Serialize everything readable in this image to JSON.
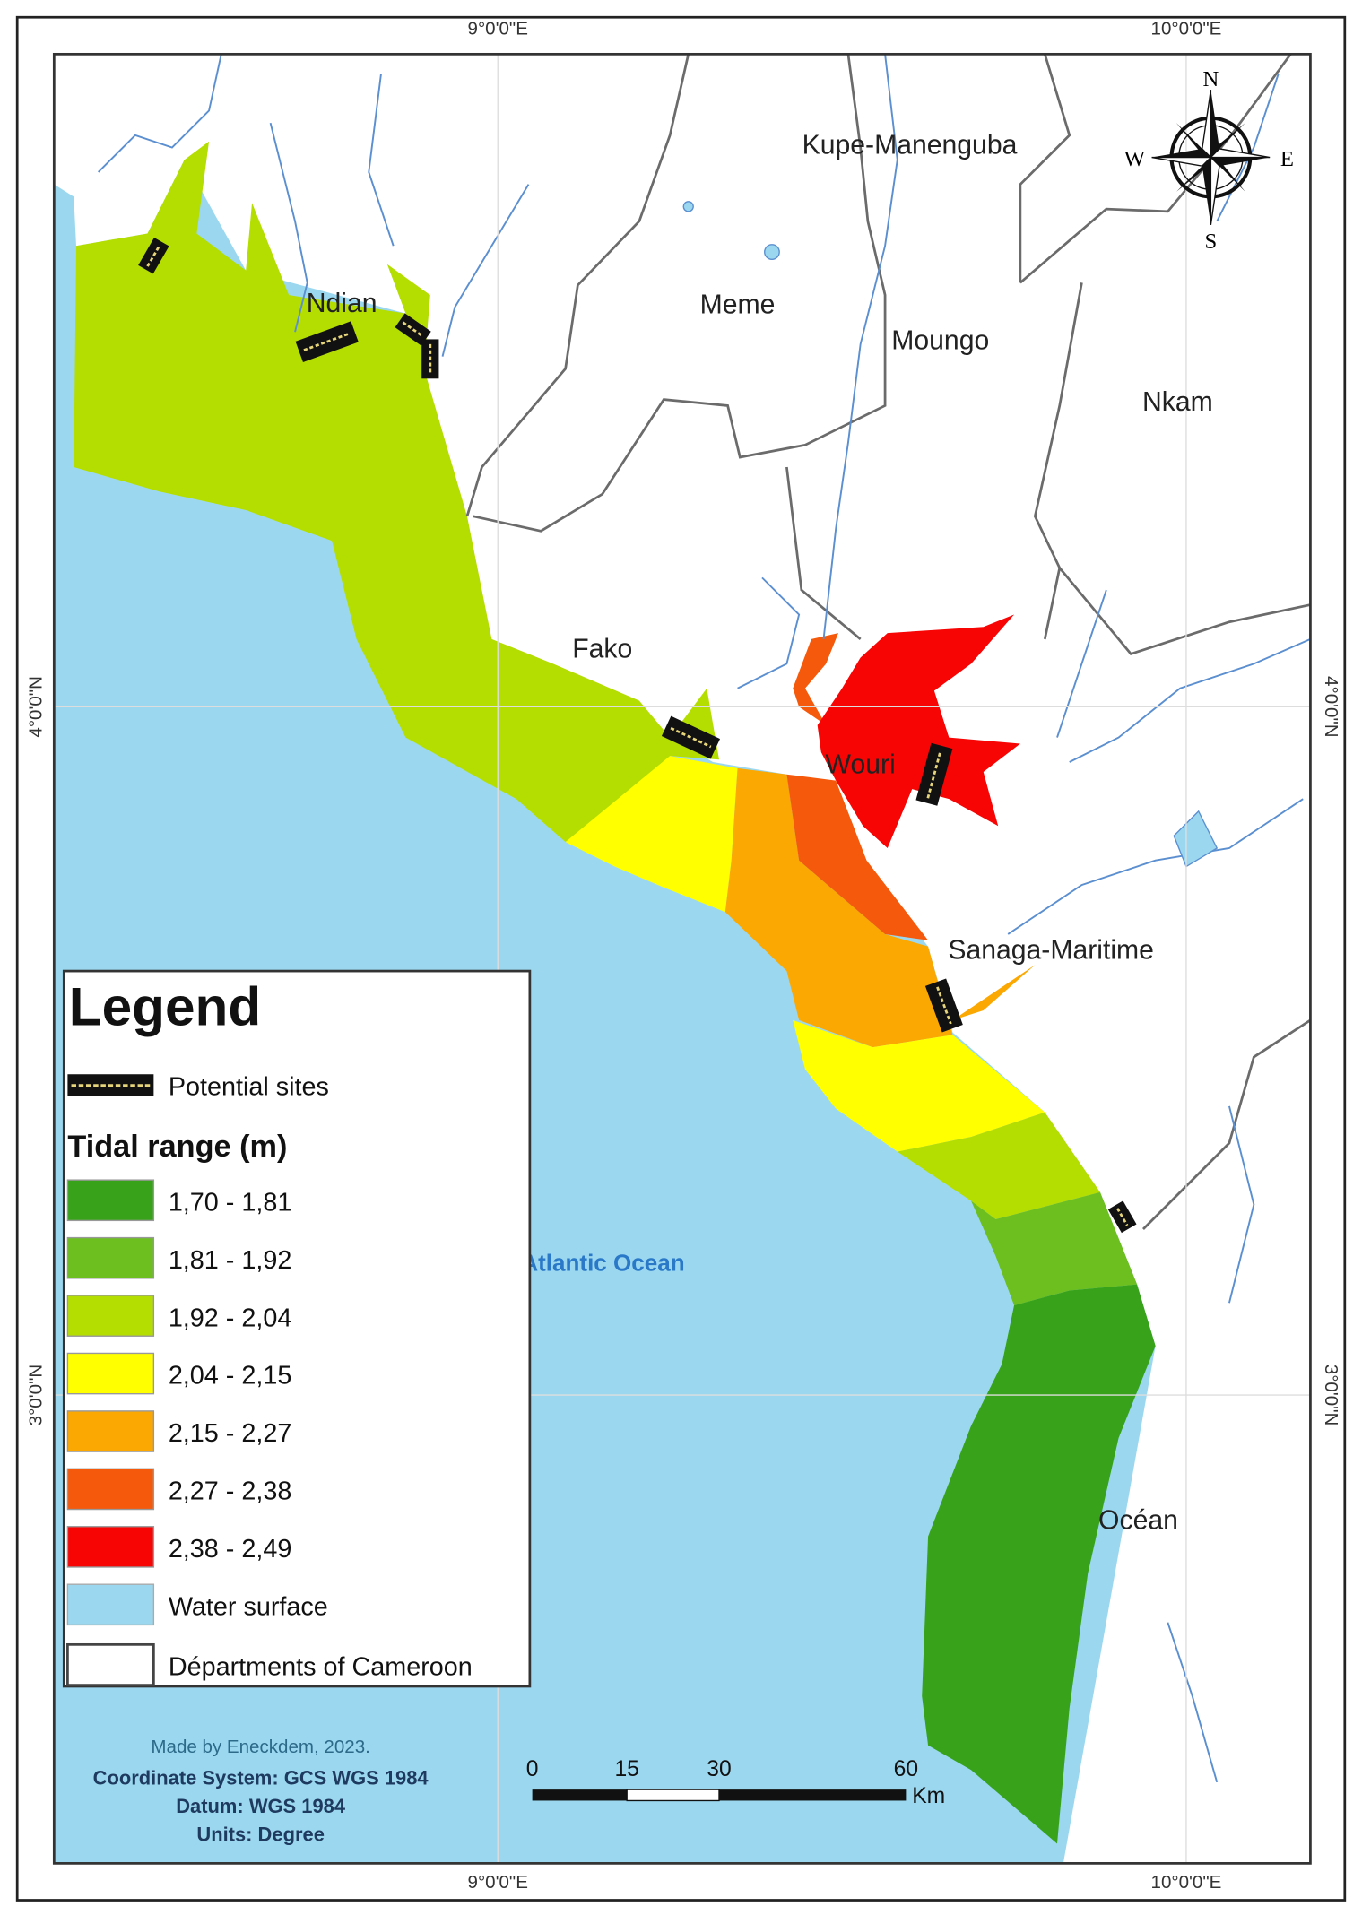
{
  "grid": {
    "lon_labels": [
      "9°0'0\"E",
      "10°0'0\"E"
    ],
    "lat_labels": [
      "4°0'0\"N",
      "3°0'0\"N"
    ]
  },
  "compass": {
    "n": "N",
    "s": "S",
    "e": "E",
    "w": "W"
  },
  "departments": {
    "kupe": "Kupe-Manenguba",
    "ndian": "Ndian",
    "meme": "Meme",
    "moungo": "Moungo",
    "nkam": "Nkam",
    "fako": "Fako",
    "wouri": "Wouri",
    "sanaga": "Sanaga-Maritime",
    "ocean_dept": "Océan"
  },
  "water_label": "Atlantic Ocean",
  "legend": {
    "title": "Legend",
    "sites_label": "Potential sites",
    "tidal_title": "Tidal range (m)",
    "classes": [
      {
        "label": "1,70 - 1,81",
        "color": "#38a31a"
      },
      {
        "label": "1,81 - 1,92",
        "color": "#6cbf1e"
      },
      {
        "label": "1,92 - 2,04",
        "color": "#b4dd02"
      },
      {
        "label": "2,04 - 2,15",
        "color": "#ffff00"
      },
      {
        "label": "2,15 - 2,27",
        "color": "#fba802"
      },
      {
        "label": "2,27 - 2,38",
        "color": "#f55a0c"
      },
      {
        "label": "2,38 - 2,49",
        "color": "#f70505"
      }
    ],
    "water_label": "Water surface",
    "water_color": "#9bd8f0",
    "dept_label": "Départments of Cameroon"
  },
  "credits": {
    "made_by": "Made by Eneckdem, 2023.",
    "coord": "Coordinate System: GCS WGS 1984",
    "datum": "Datum: WGS 1984",
    "units": "Units: Degree"
  },
  "scale_bar": {
    "ticks": [
      "0",
      "15",
      "30",
      "60"
    ],
    "unit": "Km"
  }
}
